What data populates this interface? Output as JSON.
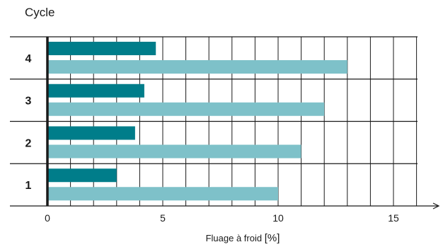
{
  "chart_data": {
    "type": "bar",
    "title": "Cycle",
    "xlabel": "Fluage à froid",
    "xlabel_unit": "[%]",
    "categories": [
      "1",
      "2",
      "3",
      "4"
    ],
    "series": [
      {
        "values": [
          3.0,
          3.8,
          4.2,
          4.7
        ],
        "color": "#007d8a"
      },
      {
        "values": [
          10.0,
          11.0,
          12.0,
          13.0
        ],
        "color": "#7ec1c9"
      }
    ],
    "xlim": [
      0,
      17
    ],
    "xticks": [
      0,
      5,
      10,
      15
    ],
    "grid": true,
    "orientation": "horizontal"
  }
}
